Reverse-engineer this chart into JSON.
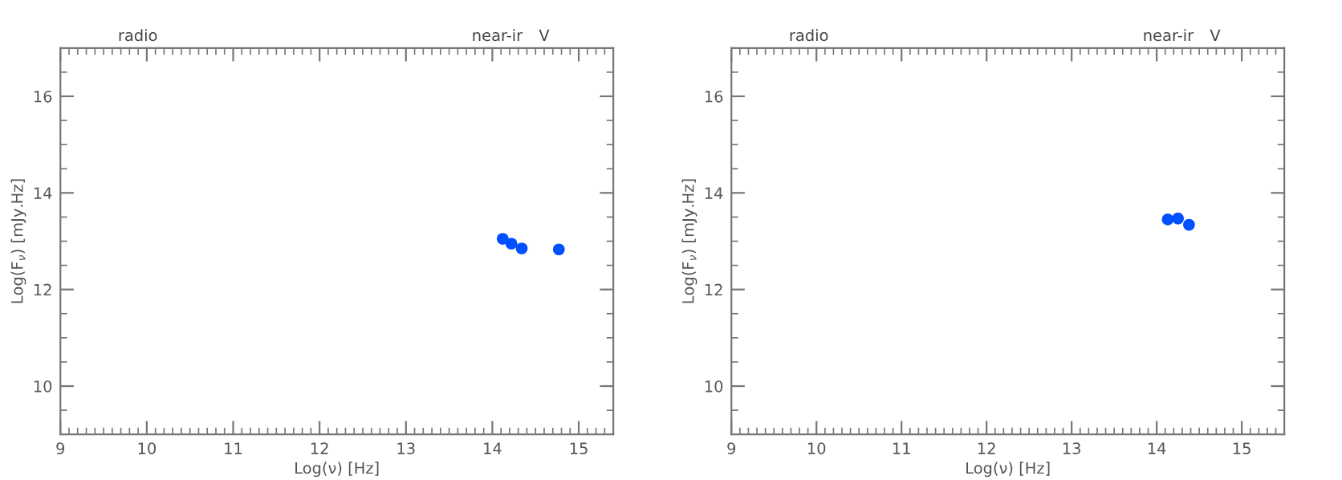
{
  "chart_data": [
    {
      "type": "scatter",
      "xlabel": "Log(ν) [Hz]",
      "ylabel": "Log(F$_{ν}$) [mJy.Hz]",
      "marker": "circle",
      "grid": false,
      "series": [
        {
          "color": "#0050ff",
          "x": [
            14.12,
            14.22,
            14.34,
            14.77
          ],
          "values": [
            13.05,
            12.95,
            12.85,
            12.83
          ]
        }
      ],
      "xlim": [
        9,
        15.4
      ],
      "xticks": [
        9,
        10,
        11,
        12,
        13,
        14,
        15
      ],
      "ylim": [
        9,
        17
      ],
      "yticks": [
        10,
        12,
        14,
        16
      ],
      "annotations": [
        "radio",
        "near-ir",
        "V"
      ]
    },
    {
      "type": "scatter",
      "xlabel": "Log(ν) [Hz]",
      "ylabel": "Log(F$_{ν}$) [mJy.Hz]",
      "marker": "circle",
      "grid": false,
      "series": [
        {
          "color": "#0050ff",
          "x": [
            14.13,
            14.25,
            14.38
          ],
          "values": [
            13.45,
            13.47,
            13.34
          ]
        }
      ],
      "xlim": [
        9,
        15.5
      ],
      "xticks": [
        9,
        10,
        11,
        12,
        13,
        14,
        15
      ],
      "ylim": [
        9,
        17
      ],
      "yticks": [
        10,
        12,
        14,
        16
      ],
      "annotations": [
        "radio",
        "near-ir",
        "V"
      ]
    }
  ]
}
